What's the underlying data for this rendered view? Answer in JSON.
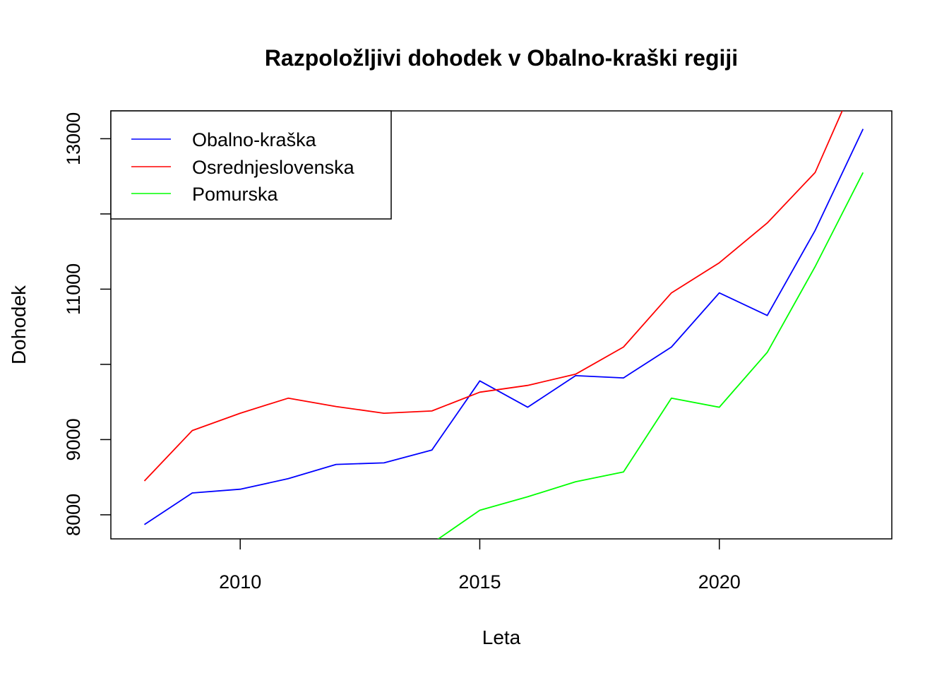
{
  "chart_data": {
    "type": "line",
    "title": "Razpoložljivi dohodek v Obalno-kraški regiji",
    "xlabel": "Leta",
    "ylabel": "Dohodek",
    "xlim": [
      2007.3,
      2023.6
    ],
    "ylim": [
      7680,
      13370
    ],
    "x_ticks": [
      "2010",
      "2015",
      "2020"
    ],
    "y_ticks": [
      "8000",
      "9000",
      "11000",
      "13000"
    ],
    "y_tick_marks": [
      8000,
      9000,
      10000,
      11000,
      12000,
      13000
    ],
    "x": [
      2008,
      2009,
      2010,
      2011,
      2012,
      2013,
      2014,
      2015,
      2016,
      2017,
      2018,
      2019,
      2020,
      2021,
      2022,
      2023
    ],
    "grid": false,
    "legend_position": "top-left",
    "series": [
      {
        "name": "Obalno-kraška",
        "color": "#0000ff",
        "values": [
          7870,
          8290,
          8340,
          8480,
          8670,
          8690,
          8860,
          9780,
          9430,
          9850,
          9820,
          10230,
          10950,
          10650,
          11780,
          13130
        ]
      },
      {
        "name": "Osrednjeslovenska",
        "color": "#ff0000",
        "values": [
          8450,
          9120,
          9350,
          9550,
          9440,
          9350,
          9380,
          9630,
          9720,
          9870,
          10230,
          10950,
          11350,
          11880,
          12550,
          14000
        ]
      },
      {
        "name": "Pomurska",
        "color": "#00ff00",
        "values": [
          null,
          null,
          null,
          null,
          null,
          null,
          7620,
          8060,
          8240,
          8440,
          8570,
          9550,
          9430,
          10160,
          11300,
          12550
        ]
      }
    ]
  }
}
